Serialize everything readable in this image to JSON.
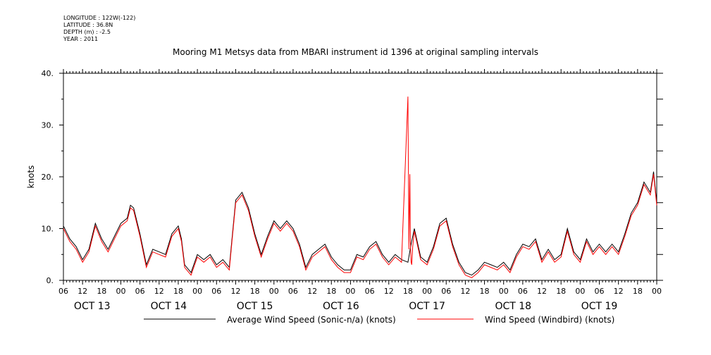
{
  "meta": {
    "longitude": "LONGITUDE : 122W(-122)",
    "latitude": "LATITUDE : 36.8N",
    "depth": "DEPTH (m) : -2.5",
    "year": "YEAR : 2011"
  },
  "chart_data": {
    "type": "line",
    "title": "Mooring M1 Metsys data from MBARI instrument id 1396 at original sampling intervals",
    "ylabel": "knots",
    "ylim": [
      0,
      40
    ],
    "yticks": [
      0,
      10,
      20,
      30,
      40
    ],
    "ytick_labels": [
      "0.",
      "10.",
      "20.",
      "30.",
      "40."
    ],
    "x_units": "hours since OCT 13 00:00",
    "xlim": [
      6,
      192
    ],
    "xticks": [
      6,
      12,
      18,
      24,
      30,
      36,
      42,
      48,
      54,
      60,
      66,
      72,
      78,
      84,
      90,
      96,
      102,
      108,
      114,
      120,
      126,
      132,
      138,
      144,
      150,
      156,
      162,
      168,
      174,
      180,
      186,
      192
    ],
    "xtick_labels": [
      "06",
      "12",
      "18",
      "00",
      "06",
      "12",
      "18",
      "00",
      "06",
      "12",
      "18",
      "00",
      "06",
      "12",
      "18",
      "00",
      "06",
      "12",
      "18",
      "00",
      "06",
      "12",
      "18",
      "00",
      "06",
      "12",
      "18",
      "00",
      "06",
      "12",
      "18",
      "00"
    ],
    "day_labels": [
      {
        "label": "OCT 13",
        "x": 15
      },
      {
        "label": "OCT 14",
        "x": 39
      },
      {
        "label": "OCT 15",
        "x": 66
      },
      {
        "label": "OCT 16",
        "x": 93
      },
      {
        "label": "OCT 17",
        "x": 120
      },
      {
        "label": "OCT 18",
        "x": 147
      },
      {
        "label": "OCT 19",
        "x": 174
      }
    ],
    "grid": false,
    "legend_position": "bottom",
    "series": [
      {
        "name": "Average Wind Speed (Sonic-n/a) (knots)",
        "color": "#000000",
        "x": [
          6,
          8,
          10,
          12,
          14,
          16,
          18,
          20,
          22,
          24,
          26,
          27,
          28,
          30,
          32,
          34,
          36,
          38,
          40,
          42,
          43,
          44,
          46,
          48,
          50,
          52,
          54,
          56,
          58,
          59,
          60,
          62,
          64,
          66,
          68,
          70,
          72,
          74,
          76,
          78,
          80,
          82,
          84,
          86,
          88,
          90,
          92,
          94,
          96,
          98,
          100,
          102,
          104,
          106,
          108,
          110,
          112,
          114,
          115,
          116,
          118,
          120,
          122,
          124,
          126,
          128,
          130,
          132,
          134,
          136,
          138,
          140,
          142,
          144,
          146,
          148,
          150,
          152,
          154,
          156,
          158,
          160,
          162,
          164,
          166,
          168,
          170,
          172,
          174,
          176,
          178,
          180,
          182,
          184,
          186,
          188,
          190,
          191,
          192
        ],
        "y": [
          10.5,
          8,
          6.5,
          4,
          6,
          11,
          8,
          6,
          8.5,
          11,
          12,
          14.5,
          14,
          9,
          3,
          6,
          5.5,
          5,
          9,
          10.5,
          8,
          3,
          1.5,
          5,
          4,
          5,
          3,
          4,
          2.5,
          9,
          15.5,
          17,
          14,
          9,
          5,
          8.5,
          11.5,
          10,
          11.5,
          10,
          7,
          2.5,
          5,
          6,
          7,
          4.5,
          3,
          2,
          2,
          5,
          4.5,
          6.5,
          7.5,
          5,
          3.5,
          5,
          4,
          3.5,
          7,
          10,
          4.5,
          3.5,
          6.5,
          11,
          12,
          7,
          3.5,
          1.5,
          1,
          2,
          3.5,
          3,
          2.5,
          3.5,
          2,
          5,
          7,
          6.5,
          8,
          4,
          6,
          4,
          5,
          10,
          5.5,
          4,
          8,
          5.5,
          7,
          5.5,
          7,
          5.5,
          9,
          13,
          15,
          19,
          17,
          21,
          15
        ]
      },
      {
        "name": "Wind Speed (Windbird) (knots)",
        "color": "#ff0000",
        "x": [
          6,
          8,
          10,
          12,
          14,
          16,
          18,
          20,
          22,
          24,
          26,
          27,
          28,
          30,
          32,
          34,
          36,
          38,
          40,
          42,
          43,
          44,
          46,
          48,
          50,
          52,
          54,
          56,
          58,
          59,
          60,
          62,
          64,
          66,
          68,
          70,
          72,
          74,
          76,
          78,
          80,
          82,
          84,
          86,
          88,
          90,
          92,
          94,
          96,
          98,
          100,
          102,
          104,
          106,
          108,
          110,
          112,
          114,
          114.3,
          114.6,
          114.8,
          115,
          115.2,
          115.5,
          116,
          118,
          120,
          122,
          124,
          126,
          128,
          130,
          132,
          134,
          136,
          138,
          140,
          142,
          144,
          146,
          148,
          150,
          152,
          154,
          156,
          158,
          160,
          162,
          164,
          166,
          168,
          170,
          172,
          174,
          176,
          178,
          180,
          182,
          184,
          186,
          188,
          190,
          191,
          192
        ],
        "y": [
          10,
          7.5,
          6,
          3.5,
          5.5,
          10.5,
          7.5,
          5.5,
          8,
          10.5,
          11.5,
          14,
          13.5,
          8.5,
          2.5,
          5.5,
          5,
          4.5,
          8.5,
          10,
          7.5,
          2.5,
          1,
          4.5,
          3.5,
          4.5,
          2.5,
          3.5,
          2,
          8.5,
          15,
          16.5,
          13.5,
          8.5,
          4.5,
          8,
          11,
          9.5,
          11,
          9.5,
          6.5,
          2,
          4.5,
          5.5,
          6.5,
          4,
          2.5,
          1.5,
          1.5,
          4.5,
          4,
          6,
          7,
          4.5,
          3,
          4.5,
          3.5,
          35.5,
          6,
          20.5,
          7,
          3.5,
          3,
          6.5,
          9.5,
          4,
          3,
          6,
          10.5,
          11.5,
          6.5,
          3,
          1,
          0.5,
          1.5,
          3,
          2.5,
          2,
          3,
          1.5,
          4.5,
          6.5,
          6,
          7.5,
          3.5,
          5.5,
          3.5,
          4.5,
          9.5,
          5,
          3.5,
          7.5,
          5,
          6.5,
          5,
          6.5,
          5,
          8.5,
          12.5,
          14.5,
          18.5,
          16.5,
          20.5,
          14.5
        ]
      }
    ]
  }
}
